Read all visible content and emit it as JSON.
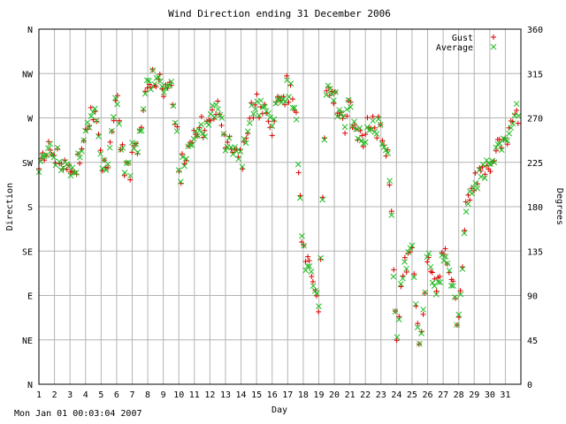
{
  "chart_data": {
    "type": "scatter",
    "title": "Wind Direction ending 31 December 2006",
    "xlabel": "Day",
    "ylabel_left": "Direction",
    "ylabel_right": "Degrees",
    "xlim": [
      1,
      32
    ],
    "ylim": [
      0,
      360
    ],
    "grid": true,
    "legend_position": "top-right",
    "x_ticks": [
      "1",
      "2",
      "3",
      "4",
      "5",
      "6",
      "7",
      "8",
      "9",
      "10",
      "11",
      "12",
      "13",
      "14",
      "15",
      "16",
      "17",
      "18",
      "19",
      "20",
      "21",
      "22",
      "23",
      "24",
      "25",
      "26",
      "27",
      "28",
      "29",
      "30",
      "31"
    ],
    "y_ticks_left": [
      {
        "value": 0,
        "label": "N"
      },
      {
        "value": 45,
        "label": "NE"
      },
      {
        "value": 90,
        "label": "E"
      },
      {
        "value": 135,
        "label": "SE"
      },
      {
        "value": 180,
        "label": "S"
      },
      {
        "value": 225,
        "label": "SW"
      },
      {
        "value": 270,
        "label": "W"
      },
      {
        "value": 315,
        "label": "NW"
      },
      {
        "value": 360,
        "label": "N"
      }
    ],
    "y_ticks_right": [
      0,
      45,
      90,
      135,
      180,
      225,
      270,
      315,
      360
    ],
    "day_profile": [
      {
        "x": 1.0,
        "y": 215
      },
      {
        "x": 1.5,
        "y": 240
      },
      {
        "x": 2.0,
        "y": 225
      },
      {
        "x": 2.5,
        "y": 225
      },
      {
        "x": 3.0,
        "y": 215
      },
      {
        "x": 3.5,
        "y": 225
      },
      {
        "x": 4.0,
        "y": 250
      },
      {
        "x": 4.5,
        "y": 285
      },
      {
        "x": 5.0,
        "y": 230
      },
      {
        "x": 5.5,
        "y": 230
      },
      {
        "x": 6.0,
        "y": 290
      },
      {
        "x": 6.5,
        "y": 215
      },
      {
        "x": 7.0,
        "y": 230
      },
      {
        "x": 7.5,
        "y": 250
      },
      {
        "x": 8.0,
        "y": 305
      },
      {
        "x": 8.5,
        "y": 310
      },
      {
        "x": 9.0,
        "y": 300
      },
      {
        "x": 9.5,
        "y": 310
      },
      {
        "x": 10.0,
        "y": 215
      },
      {
        "x": 10.5,
        "y": 230
      },
      {
        "x": 11.0,
        "y": 250
      },
      {
        "x": 11.5,
        "y": 250
      },
      {
        "x": 12.0,
        "y": 270
      },
      {
        "x": 12.5,
        "y": 285
      },
      {
        "x": 13.0,
        "y": 250
      },
      {
        "x": 13.5,
        "y": 235
      },
      {
        "x": 14.0,
        "y": 230
      },
      {
        "x": 14.5,
        "y": 260
      },
      {
        "x": 15.0,
        "y": 285
      },
      {
        "x": 15.5,
        "y": 280
      },
      {
        "x": 16.0,
        "y": 260
      },
      {
        "x": 16.5,
        "y": 290
      },
      {
        "x": 17.0,
        "y": 300
      },
      {
        "x": 17.5,
        "y": 290
      },
      {
        "x": 18.0,
        "y": 135
      },
      {
        "x": 18.5,
        "y": 115
      },
      {
        "x": 19.0,
        "y": 85
      },
      {
        "x": 19.5,
        "y": 300
      },
      {
        "x": 20.0,
        "y": 295
      },
      {
        "x": 20.5,
        "y": 270
      },
      {
        "x": 21.0,
        "y": 280
      },
      {
        "x": 21.5,
        "y": 250
      },
      {
        "x": 22.0,
        "y": 245
      },
      {
        "x": 22.5,
        "y": 260
      },
      {
        "x": 23.0,
        "y": 250
      },
      {
        "x": 23.5,
        "y": 235
      },
      {
        "x": 24.0,
        "y": 45
      },
      {
        "x": 24.5,
        "y": 130
      },
      {
        "x": 25.0,
        "y": 130
      },
      {
        "x": 25.5,
        "y": 30
      },
      {
        "x": 26.0,
        "y": 130
      },
      {
        "x": 26.5,
        "y": 90
      },
      {
        "x": 27.0,
        "y": 130
      },
      {
        "x": 27.5,
        "y": 110
      },
      {
        "x": 28.0,
        "y": 60
      },
      {
        "x": 28.5,
        "y": 180
      },
      {
        "x": 29.0,
        "y": 200
      },
      {
        "x": 29.5,
        "y": 215
      },
      {
        "x": 30.0,
        "y": 225
      },
      {
        "x": 30.5,
        "y": 245
      },
      {
        "x": 31.0,
        "y": 245
      },
      {
        "x": 31.5,
        "y": 260
      },
      {
        "x": 32.0,
        "y": 300
      }
    ],
    "series": [
      {
        "name": "Gust",
        "marker": "+",
        "color": "#dd0000"
      },
      {
        "name": "Average",
        "marker": "x",
        "color": "#22bb22"
      }
    ]
  },
  "footer": "Mon Jan 01 00:03:04 2007"
}
